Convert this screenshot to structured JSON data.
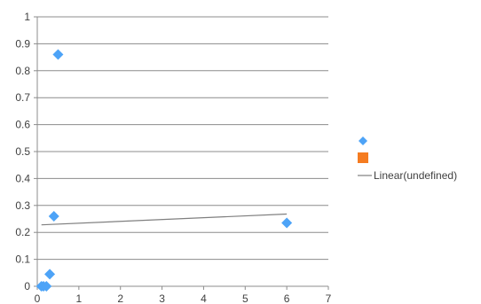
{
  "chart_data": {
    "type": "scatter",
    "title": "",
    "xlabel": "",
    "ylabel": "",
    "xlim": [
      0,
      7
    ],
    "ylim": [
      0,
      1
    ],
    "x_ticks": [
      "0",
      "1",
      "2",
      "3",
      "4",
      "5",
      "6",
      "7"
    ],
    "y_ticks": [
      "0",
      "0.1",
      "0.2",
      "0.3",
      "0.4",
      "0.5",
      "0.6",
      "0.7",
      "0.8",
      "0.9",
      "1"
    ],
    "grid": "horizontal",
    "legend_position": "right",
    "series": [
      {
        "marker": "diamond",
        "color": "#4da3f7",
        "points": [
          {
            "x": 0.5,
            "y": 0.86
          },
          {
            "x": 0.4,
            "y": 0.26
          },
          {
            "x": 6.0,
            "y": 0.235
          },
          {
            "x": 0.3,
            "y": 0.045
          },
          {
            "x": 0.1,
            "y": 0.0
          },
          {
            "x": 0.15,
            "y": 0.0
          },
          {
            "x": 0.22,
            "y": 0.0
          }
        ]
      },
      {
        "marker": "square",
        "color": "#f57c21",
        "points": []
      }
    ],
    "trendline": {
      "name": "Linear(undefined)",
      "color": "#7f7f7f",
      "x": [
        0.1,
        6.0
      ],
      "y": [
        0.228,
        0.268
      ]
    }
  }
}
